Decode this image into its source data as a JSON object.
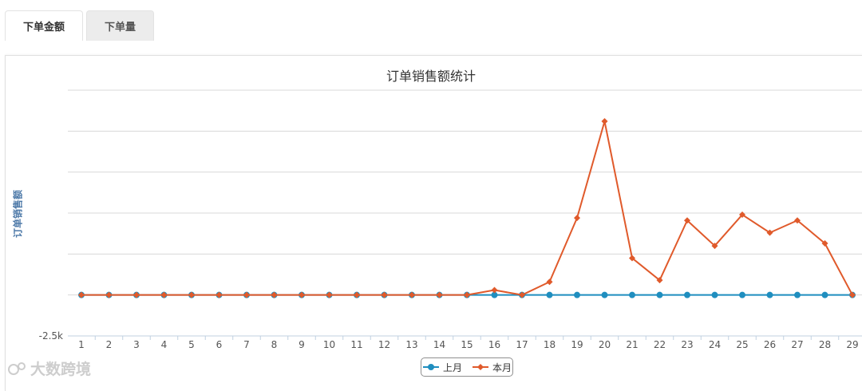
{
  "tabs": [
    {
      "label": "下单金额",
      "active": true
    },
    {
      "label": "下单量",
      "active": false
    }
  ],
  "watermark": "大数跨境",
  "chart_data": {
    "type": "line",
    "title": "订单销售额统计",
    "ylabel": "订单销售额",
    "xlabel": "",
    "categories": [
      "1",
      "2",
      "3",
      "4",
      "5",
      "6",
      "7",
      "8",
      "9",
      "10",
      "11",
      "12",
      "13",
      "14",
      "15",
      "16",
      "17",
      "18",
      "19",
      "20",
      "21",
      "22",
      "23",
      "24",
      "25",
      "26",
      "27",
      "28",
      "29"
    ],
    "ylim": [
      -2500,
      12500
    ],
    "yticks": [
      -2500,
      0,
      2500,
      5000,
      7500,
      10000,
      12500
    ],
    "ytick_labels_visible": [
      "-2.5k"
    ],
    "grid": true,
    "legend_position": "bottom-center",
    "series": [
      {
        "name": "上月",
        "color": "#1f8ebf",
        "marker": "circle",
        "values": [
          0,
          0,
          0,
          0,
          0,
          0,
          0,
          0,
          0,
          0,
          0,
          0,
          0,
          0,
          0,
          0,
          0,
          0,
          0,
          0,
          0,
          0,
          0,
          0,
          0,
          0,
          0,
          0,
          0
        ]
      },
      {
        "name": "本月",
        "color": "#e05a2b",
        "marker": "diamond",
        "values": [
          0,
          0,
          0,
          0,
          0,
          0,
          0,
          0,
          0,
          0,
          0,
          0,
          0,
          0,
          0,
          300,
          0,
          800,
          4700,
          10600,
          2250,
          900,
          4550,
          3000,
          4900,
          3800,
          4550,
          3150,
          0
        ]
      }
    ]
  }
}
